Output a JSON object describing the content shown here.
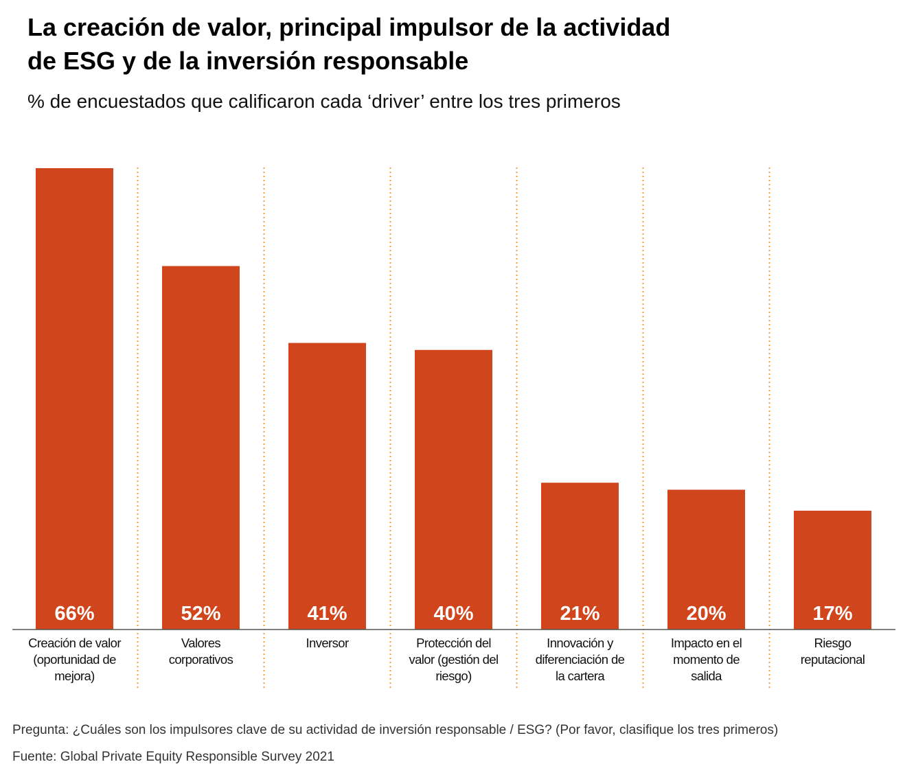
{
  "chart_data": {
    "type": "bar",
    "title": [
      "La creación de valor, principal impulsor de la actividad",
      "de ESG y de la inversión responsable"
    ],
    "subtitle": "% de encuestados que calificaron cada ‘driver’ entre los tres primeros",
    "categories": [
      [
        "Creación de valor",
        "(oportunidad de",
        "mejora)"
      ],
      [
        "Valores",
        "corporativos"
      ],
      [
        "Inversor"
      ],
      [
        "Protección del",
        "valor (gestión del",
        "riesgo)"
      ],
      [
        "Innovación y",
        "diferenciación de",
        "la cartera"
      ],
      [
        "Impacto en el",
        "momento de",
        "salida"
      ],
      [
        "Riesgo",
        "reputacional"
      ]
    ],
    "values": [
      66,
      52,
      41,
      40,
      21,
      20,
      17
    ],
    "value_labels": [
      "66%",
      "52%",
      "41%",
      "40%",
      "21%",
      "20%",
      "17%"
    ],
    "ylim": [
      0,
      66
    ],
    "xlabel": "",
    "ylabel": "",
    "grid": false,
    "bar_color": "#D0451B",
    "separator_color": "#F0A030"
  },
  "footnotes": {
    "question": "Pregunta: ¿Cuáles son los impulsores clave de su actividad de inversión responsable / ESG? (Por favor, clasifique los tres primeros)",
    "source": "Fuente: Global Private Equity Responsible Survey 2021"
  }
}
